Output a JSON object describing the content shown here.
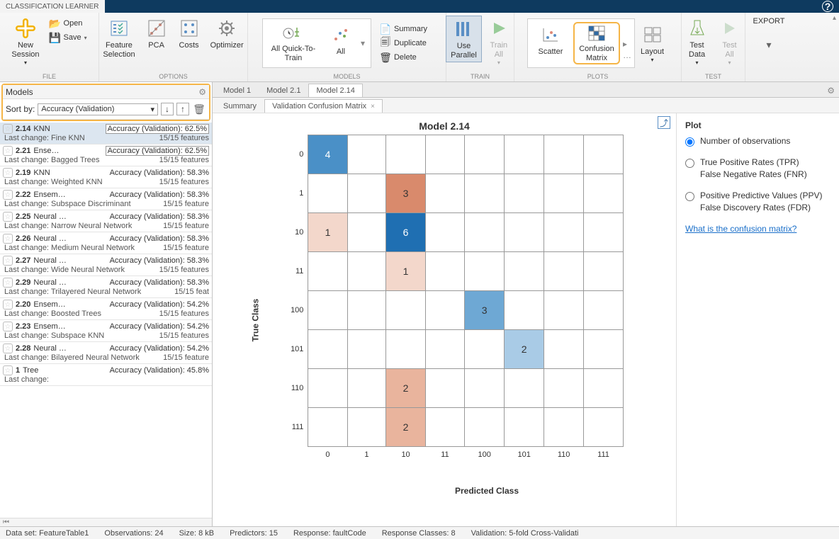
{
  "app_title": "CLASSIFICATION LEARNER",
  "ribbon": {
    "file": {
      "label": "FILE",
      "new_session": "New\nSession",
      "open": "Open",
      "save": "Save"
    },
    "options": {
      "label": "OPTIONS",
      "feature_selection": "Feature\nSelection",
      "pca": "PCA",
      "costs": "Costs",
      "optimizer": "Optimizer"
    },
    "models": {
      "label": "MODELS",
      "all_quick": "All Quick-To-\nTrain",
      "all": "All",
      "summary": "Summary",
      "duplicate": "Duplicate",
      "delete": "Delete"
    },
    "train": {
      "label": "TRAIN",
      "use_parallel": "Use\nParallel",
      "train_all": "Train\nAll"
    },
    "plots": {
      "label": "PLOTS",
      "scatter": "Scatter",
      "confusion": "Confusion\nMatrix",
      "layout": "Layout"
    },
    "test": {
      "label": "TEST",
      "test_data": "Test\nData",
      "test_all": "Test\nAll"
    },
    "export": {
      "label": "EXPORT"
    }
  },
  "sidebar": {
    "title": "Models",
    "sort_label": "Sort by:",
    "sort_value": "Accuracy (Validation)",
    "items": [
      {
        "id": "2.14",
        "name": "KNN",
        "acc": "62.5%",
        "boxed": true,
        "change": "Fine KNN",
        "feat": "15/15 features",
        "selected": true
      },
      {
        "id": "2.21",
        "name": "Ense…",
        "acc": "62.5%",
        "boxed": true,
        "change": "Bagged Trees",
        "feat": "15/15 features"
      },
      {
        "id": "2.19",
        "name": "KNN",
        "acc": "58.3%",
        "boxed": false,
        "change": "Weighted KNN",
        "feat": "15/15 features"
      },
      {
        "id": "2.22",
        "name": "Ensem…",
        "acc": "58.3%",
        "boxed": false,
        "change": "Subspace Discriminant",
        "feat": "15/15 feature"
      },
      {
        "id": "2.25",
        "name": "Neural …",
        "acc": "58.3%",
        "boxed": false,
        "change": "Narrow Neural Network",
        "feat": "15/15 feature"
      },
      {
        "id": "2.26",
        "name": "Neural …",
        "acc": "58.3%",
        "boxed": false,
        "change": "Medium Neural Network",
        "feat": "15/15 feature"
      },
      {
        "id": "2.27",
        "name": "Neural …",
        "acc": "58.3%",
        "boxed": false,
        "change": "Wide Neural Network",
        "feat": "15/15 features"
      },
      {
        "id": "2.29",
        "name": "Neural …",
        "acc": "58.3%",
        "boxed": false,
        "change": "Trilayered Neural Network",
        "feat": "15/15 feat"
      },
      {
        "id": "2.20",
        "name": "Ensem…",
        "acc": "54.2%",
        "boxed": false,
        "change": "Boosted Trees",
        "feat": "15/15 features"
      },
      {
        "id": "2.23",
        "name": "Ensem…",
        "acc": "54.2%",
        "boxed": false,
        "change": "Subspace KNN",
        "feat": "15/15 features"
      },
      {
        "id": "2.28",
        "name": "Neural …",
        "acc": "54.2%",
        "boxed": false,
        "change": "Bilayered Neural Network",
        "feat": "15/15 feature"
      },
      {
        "id": "1",
        "name": "Tree",
        "acc": "45.8%",
        "boxed": false,
        "change": "",
        "feat": ""
      }
    ]
  },
  "main": {
    "doc_tabs": [
      "Model 1",
      "Model 2.1",
      "Model 2.14"
    ],
    "sub_tabs": [
      "Summary",
      "Validation Confusion Matrix"
    ],
    "chart": {
      "title": "Model 2.14",
      "y_label": "True Class",
      "x_label": "Predicted Class",
      "ticks": [
        "0",
        "1",
        "10",
        "11",
        "100",
        "101",
        "110",
        "111"
      ],
      "cells": [
        [
          {
            "v": "4",
            "bg": "#4a90c7",
            "fg": "#fff"
          },
          null,
          null,
          null,
          null,
          null,
          null,
          null
        ],
        [
          null,
          null,
          {
            "v": "3",
            "bg": "#d98a6c",
            "fg": "#333"
          },
          null,
          null,
          null,
          null,
          null
        ],
        [
          {
            "v": "1",
            "bg": "#f3d7cb",
            "fg": "#333"
          },
          null,
          {
            "v": "6",
            "bg": "#1f6fb2",
            "fg": "#fff"
          },
          null,
          null,
          null,
          null,
          null
        ],
        [
          null,
          null,
          {
            "v": "1",
            "bg": "#f3d7cb",
            "fg": "#333"
          },
          null,
          null,
          null,
          null,
          null
        ],
        [
          null,
          null,
          null,
          null,
          {
            "v": "3",
            "bg": "#6ea8d4",
            "fg": "#333"
          },
          null,
          null,
          null
        ],
        [
          null,
          null,
          null,
          null,
          null,
          {
            "v": "2",
            "bg": "#a9cbe6",
            "fg": "#333"
          },
          null,
          null
        ],
        [
          null,
          null,
          {
            "v": "2",
            "bg": "#e9b49d",
            "fg": "#333"
          },
          null,
          null,
          null,
          null,
          null
        ],
        [
          null,
          null,
          {
            "v": "2",
            "bg": "#e9b49d",
            "fg": "#333"
          },
          null,
          null,
          null,
          null,
          null
        ]
      ]
    },
    "plot_panel": {
      "title": "Plot",
      "opt1": "Number of observations",
      "opt2a": "True Positive Rates (TPR)",
      "opt2b": "False Negative Rates (FNR)",
      "opt3a": "Positive Predictive Values (PPV)",
      "opt3b": "False Discovery Rates (FDR)",
      "help": "What is the confusion matrix?"
    }
  },
  "status": {
    "dataset": "Data set: FeatureTable1",
    "obs": "Observations: 24",
    "size": "Size: 8 kB",
    "pred": "Predictors: 15",
    "resp": "Response: faultCode",
    "classes": "Response Classes: 8",
    "validation": "Validation: 5-fold Cross-Validati"
  }
}
